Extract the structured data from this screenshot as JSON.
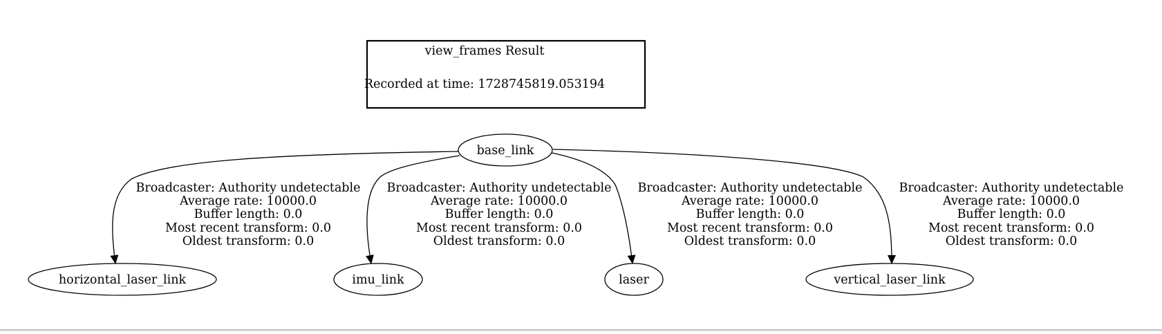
{
  "graph": {
    "title": "view_frames Result",
    "recorded_at": "Recorded at time: 1728745819.053194",
    "root": {
      "label": "base_link"
    },
    "children": [
      {
        "label": "horizontal_laser_link"
      },
      {
        "label": "imu_link"
      },
      {
        "label": "laser"
      },
      {
        "label": "vertical_laser_link"
      }
    ],
    "edges": [
      {
        "broadcaster": "Broadcaster: Authority undetectable",
        "average_rate": "Average rate: 10000.0",
        "buffer_length": "Buffer length: 0.0",
        "most_recent": "Most recent transform: 0.0",
        "oldest": "Oldest transform: 0.0"
      },
      {
        "broadcaster": "Broadcaster: Authority undetectable",
        "average_rate": "Average rate: 10000.0",
        "buffer_length": "Buffer length: 0.0",
        "most_recent": "Most recent transform: 0.0",
        "oldest": "Oldest transform: 0.0"
      },
      {
        "broadcaster": "Broadcaster: Authority undetectable",
        "average_rate": "Average rate: 10000.0",
        "buffer_length": "Buffer length: 0.0",
        "most_recent": "Most recent transform: 0.0",
        "oldest": "Oldest transform: 0.0"
      },
      {
        "broadcaster": "Broadcaster: Authority undetectable",
        "average_rate": "Average rate: 10000.0",
        "buffer_length": "Buffer length: 0.0",
        "most_recent": "Most recent transform: 0.0",
        "oldest": "Oldest transform: 0.0"
      }
    ]
  }
}
